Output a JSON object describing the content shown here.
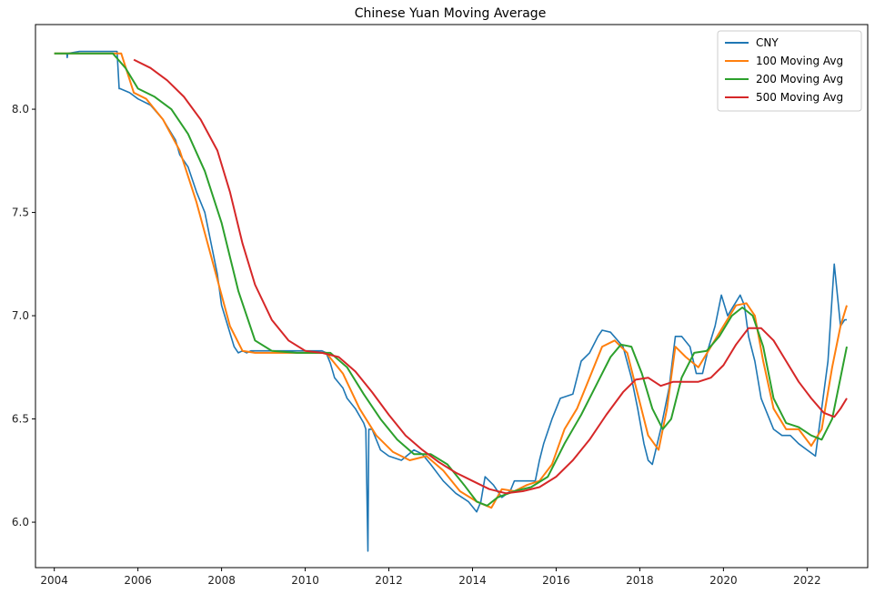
{
  "chart_data": {
    "type": "line",
    "title": "Chinese Yuan Moving Average",
    "xlabel": "",
    "ylabel": "",
    "xlim": [
      2003.55,
      2023.45
    ],
    "ylim": [
      5.78,
      8.41
    ],
    "x_ticks": [
      2004,
      2006,
      2008,
      2010,
      2012,
      2014,
      2016,
      2018,
      2020,
      2022
    ],
    "y_ticks": [
      6.0,
      6.5,
      7.0,
      7.5,
      8.0
    ],
    "grid": false,
    "legend_position": "top-right",
    "series": [
      {
        "name": "CNY",
        "color": "#1f77b4",
        "x": [
          2004.0,
          2004.3,
          2004.31,
          2004.32,
          2004.6,
          2005.0,
          2005.3,
          2005.5,
          2005.55,
          2005.57,
          2005.8,
          2006.0,
          2006.3,
          2006.6,
          2006.9,
          2007.0,
          2007.2,
          2007.4,
          2007.6,
          2007.75,
          2007.9,
          2008.0,
          2008.15,
          2008.3,
          2008.4,
          2008.5,
          2008.6,
          2008.7,
          2009.0,
          2009.5,
          2010.0,
          2010.4,
          2010.5,
          2010.6,
          2010.7,
          2010.9,
          2011.0,
          2011.2,
          2011.4,
          2011.45,
          2011.5,
          2011.52,
          2011.6,
          2011.8,
          2012.0,
          2012.3,
          2012.6,
          2012.8,
          2013.0,
          2013.3,
          2013.6,
          2013.9,
          2014.1,
          2014.2,
          2014.3,
          2014.5,
          2014.7,
          2014.9,
          2015.0,
          2015.3,
          2015.5,
          2015.6,
          2015.7,
          2015.9,
          2016.1,
          2016.4,
          2016.6,
          2016.8,
          2017.0,
          2017.1,
          2017.3,
          2017.6,
          2017.8,
          2017.95,
          2018.1,
          2018.2,
          2018.3,
          2018.5,
          2018.7,
          2018.85,
          2019.0,
          2019.2,
          2019.35,
          2019.5,
          2019.65,
          2019.8,
          2019.95,
          2020.1,
          2020.25,
          2020.4,
          2020.5,
          2020.6,
          2020.75,
          2020.9,
          2021.0,
          2021.2,
          2021.4,
          2021.6,
          2021.8,
          2022.0,
          2022.2,
          2022.35,
          2022.5,
          2022.65,
          2022.75,
          2022.8,
          2022.9,
          2022.95
        ],
        "values": [
          8.27,
          8.27,
          8.25,
          8.27,
          8.28,
          8.28,
          8.28,
          8.28,
          8.1,
          8.1,
          8.08,
          8.05,
          8.02,
          7.95,
          7.85,
          7.78,
          7.72,
          7.6,
          7.5,
          7.35,
          7.2,
          7.05,
          6.95,
          6.85,
          6.82,
          6.83,
          6.82,
          6.83,
          6.83,
          6.83,
          6.83,
          6.83,
          6.82,
          6.77,
          6.7,
          6.65,
          6.6,
          6.55,
          6.48,
          6.45,
          5.86,
          6.45,
          6.45,
          6.35,
          6.32,
          6.3,
          6.35,
          6.33,
          6.28,
          6.2,
          6.14,
          6.1,
          6.05,
          6.1,
          6.22,
          6.18,
          6.12,
          6.15,
          6.2,
          6.2,
          6.2,
          6.3,
          6.38,
          6.5,
          6.6,
          6.62,
          6.78,
          6.82,
          6.9,
          6.93,
          6.92,
          6.85,
          6.7,
          6.55,
          6.38,
          6.3,
          6.28,
          6.45,
          6.65,
          6.9,
          6.9,
          6.85,
          6.72,
          6.72,
          6.85,
          6.95,
          7.1,
          7.0,
          7.05,
          7.1,
          7.05,
          6.9,
          6.78,
          6.6,
          6.55,
          6.45,
          6.42,
          6.42,
          6.38,
          6.35,
          6.32,
          6.55,
          6.78,
          7.25,
          7.05,
          6.95,
          6.98,
          6.98
        ]
      },
      {
        "name": "100 Moving Avg",
        "color": "#ff7f0e",
        "x": [
          2004.0,
          2005.3,
          2005.6,
          2005.9,
          2006.2,
          2006.6,
          2007.0,
          2007.4,
          2007.8,
          2008.2,
          2008.5,
          2008.8,
          2009.2,
          2009.8,
          2010.5,
          2010.9,
          2011.3,
          2011.7,
          2012.1,
          2012.5,
          2012.9,
          2013.3,
          2013.7,
          2014.1,
          2014.45,
          2014.7,
          2015.0,
          2015.3,
          2015.6,
          2015.9,
          2016.2,
          2016.5,
          2016.8,
          2017.1,
          2017.4,
          2017.7,
          2017.95,
          2018.2,
          2018.45,
          2018.65,
          2018.85,
          2019.1,
          2019.4,
          2019.7,
          2020.0,
          2020.3,
          2020.55,
          2020.75,
          2020.95,
          2021.2,
          2021.5,
          2021.8,
          2022.1,
          2022.35,
          2022.6,
          2022.8,
          2022.95
        ],
        "values": [
          8.27,
          8.27,
          8.27,
          8.08,
          8.05,
          7.95,
          7.8,
          7.55,
          7.25,
          6.95,
          6.83,
          6.82,
          6.82,
          6.82,
          6.82,
          6.72,
          6.55,
          6.42,
          6.34,
          6.3,
          6.32,
          6.25,
          6.15,
          6.1,
          6.07,
          6.16,
          6.15,
          6.18,
          6.2,
          6.28,
          6.45,
          6.55,
          6.7,
          6.85,
          6.88,
          6.82,
          6.62,
          6.42,
          6.35,
          6.55,
          6.85,
          6.8,
          6.75,
          6.85,
          6.95,
          7.05,
          7.06,
          7.0,
          6.78,
          6.55,
          6.45,
          6.45,
          6.37,
          6.45,
          6.75,
          6.95,
          7.05
        ]
      },
      {
        "name": "200 Moving Avg",
        "color": "#2ca02c",
        "x": [
          2004.0,
          2005.4,
          2005.7,
          2006.0,
          2006.4,
          2006.8,
          2007.2,
          2007.6,
          2008.0,
          2008.4,
          2008.8,
          2009.2,
          2009.8,
          2010.6,
          2011.0,
          2011.4,
          2011.8,
          2012.2,
          2012.6,
          2013.0,
          2013.4,
          2013.8,
          2014.1,
          2014.35,
          2014.6,
          2015.0,
          2015.4,
          2015.8,
          2016.2,
          2016.6,
          2017.0,
          2017.3,
          2017.55,
          2017.8,
          2018.05,
          2018.3,
          2018.55,
          2018.75,
          2019.0,
          2019.3,
          2019.6,
          2019.9,
          2020.2,
          2020.45,
          2020.7,
          2020.95,
          2021.2,
          2021.5,
          2021.8,
          2022.1,
          2022.35,
          2022.6,
          2022.8,
          2022.95
        ],
        "values": [
          8.27,
          8.27,
          8.2,
          8.1,
          8.06,
          8.0,
          7.88,
          7.7,
          7.45,
          7.12,
          6.88,
          6.83,
          6.82,
          6.82,
          6.75,
          6.62,
          6.5,
          6.4,
          6.33,
          6.33,
          6.28,
          6.18,
          6.1,
          6.08,
          6.12,
          6.15,
          6.17,
          6.22,
          6.38,
          6.52,
          6.68,
          6.8,
          6.86,
          6.85,
          6.72,
          6.55,
          6.45,
          6.5,
          6.7,
          6.82,
          6.83,
          6.9,
          7.0,
          7.04,
          7.0,
          6.85,
          6.6,
          6.48,
          6.46,
          6.42,
          6.4,
          6.5,
          6.7,
          6.85
        ]
      },
      {
        "name": "500 Moving Avg",
        "color": "#d62728",
        "x": [
          2005.9,
          2006.3,
          2006.7,
          2007.1,
          2007.5,
          2007.9,
          2008.2,
          2008.5,
          2008.8,
          2009.2,
          2009.6,
          2010.0,
          2010.4,
          2010.8,
          2011.2,
          2011.6,
          2012.0,
          2012.4,
          2012.8,
          2013.2,
          2013.6,
          2014.0,
          2014.4,
          2014.8,
          2015.2,
          2015.6,
          2016.0,
          2016.4,
          2016.8,
          2017.2,
          2017.6,
          2017.9,
          2018.2,
          2018.5,
          2018.8,
          2019.1,
          2019.4,
          2019.7,
          2020.0,
          2020.3,
          2020.6,
          2020.9,
          2021.2,
          2021.5,
          2021.8,
          2022.1,
          2022.4,
          2022.65,
          2022.8,
          2022.95
        ],
        "values": [
          8.24,
          8.2,
          8.14,
          8.06,
          7.95,
          7.8,
          7.6,
          7.35,
          7.15,
          6.98,
          6.88,
          6.83,
          6.82,
          6.8,
          6.73,
          6.63,
          6.52,
          6.42,
          6.35,
          6.29,
          6.24,
          6.2,
          6.16,
          6.14,
          6.15,
          6.17,
          6.22,
          6.3,
          6.4,
          6.52,
          6.63,
          6.69,
          6.7,
          6.66,
          6.68,
          6.68,
          6.68,
          6.7,
          6.76,
          6.86,
          6.94,
          6.94,
          6.88,
          6.78,
          6.68,
          6.6,
          6.53,
          6.51,
          6.55,
          6.6
        ]
      }
    ]
  }
}
